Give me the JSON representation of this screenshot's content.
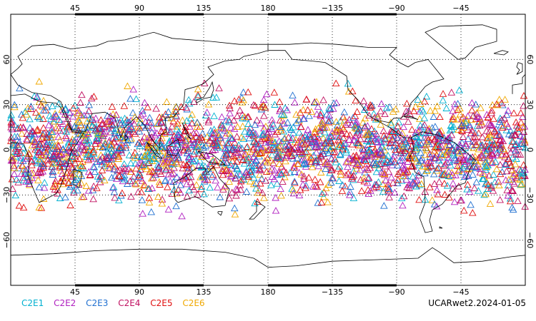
{
  "map": {
    "lon_ticks_top": [
      "45",
      "90",
      "135",
      "180",
      "−135",
      "−90",
      "−45"
    ],
    "lon_ticks_bottom": [
      "45",
      "90",
      "135",
      "180",
      "−135",
      "−90",
      "−45"
    ],
    "lat_ticks_left": [
      "60",
      "30",
      "0",
      "−30",
      "−60"
    ],
    "lat_ticks_right": [
      "60",
      "30",
      "0",
      "−30",
      "−60"
    ],
    "lon_range": [
      0,
      360
    ],
    "lat_range": [
      -90,
      90
    ],
    "lat_coverage": [
      -45,
      45
    ],
    "marker": "triangle",
    "grid": "dotted"
  },
  "legend": [
    {
      "label": "C2E1",
      "color": "#00b0d0"
    },
    {
      "label": "C2E2",
      "color": "#b020c0"
    },
    {
      "label": "C2E3",
      "color": "#1f6fd0"
    },
    {
      "label": "C2E4",
      "color": "#c01060"
    },
    {
      "label": "C2E5",
      "color": "#e01010"
    },
    {
      "label": "C2E6",
      "color": "#f0a800"
    }
  ],
  "caption": "UCARwet2.2024-01-05"
}
